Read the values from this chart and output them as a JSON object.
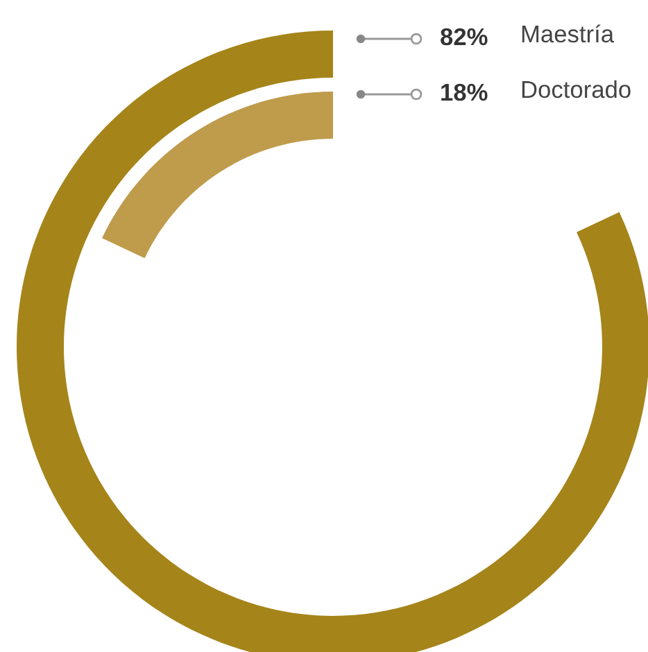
{
  "chart_data": {
    "type": "other",
    "categories": [
      "Maestría",
      "Doctorado"
    ],
    "values": [
      82,
      18
    ],
    "value_labels": [
      "82%",
      "18%"
    ],
    "colors": [
      "#a5841a",
      "#bf9b4c"
    ]
  }
}
